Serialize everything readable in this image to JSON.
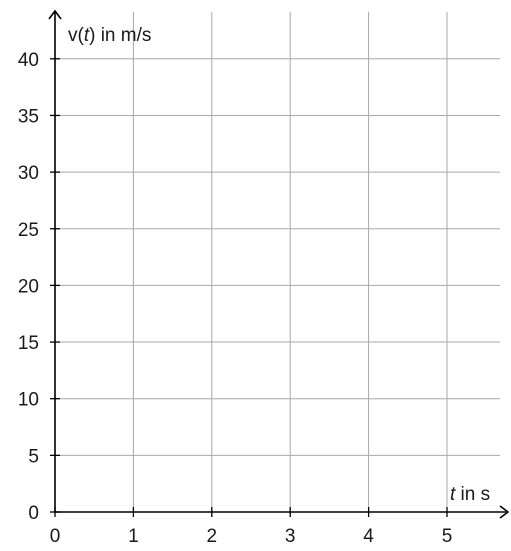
{
  "chart_data": {
    "type": "line",
    "title": "",
    "xlim": [
      0,
      5.75
    ],
    "ylim": [
      0,
      43
    ],
    "x_ticks": [
      0,
      1,
      2,
      3,
      4,
      5
    ],
    "y_ticks": [
      0,
      5,
      10,
      15,
      20,
      25,
      30,
      35,
      40
    ],
    "x_tick_labels": [
      "0",
      "1",
      "2",
      "3",
      "4",
      "5"
    ],
    "y_tick_labels": [
      "0",
      "5",
      "10",
      "15",
      "20",
      "25",
      "30",
      "35",
      "40"
    ],
    "xlabel": {
      "italic": "t",
      "rest": " in s"
    },
    "ylabel": {
      "before": "v(",
      "italic": "t",
      "after": ") in m/s"
    },
    "grid": true,
    "series": []
  }
}
